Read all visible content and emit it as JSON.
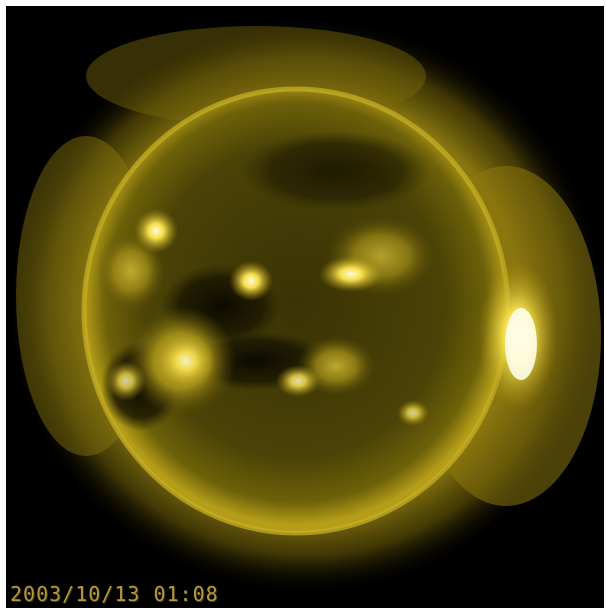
{
  "image": {
    "subject": "sun-euv",
    "palette": {
      "background": "#000000",
      "corona": "#8a7a10",
      "disk": "#3b3405",
      "rim": "#a99317",
      "active_region": "#fff39a",
      "coronal_hole": "#0f0c00"
    }
  },
  "overlay": {
    "timestamp": "2003/10/13 01:08"
  }
}
